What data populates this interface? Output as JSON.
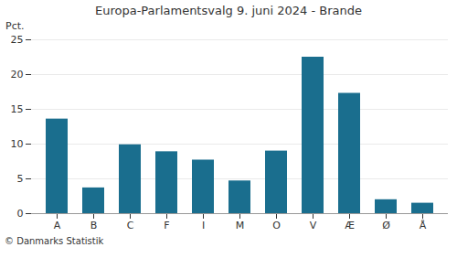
{
  "chart_data": {
    "type": "bar",
    "title": "Europa-Parlamentsvalg 9. juni 2024 - Brande",
    "ylabel": "Pct.",
    "caption": "© Danmarks Statistik",
    "categories": [
      "A",
      "B",
      "C",
      "F",
      "I",
      "M",
      "O",
      "V",
      "Æ",
      "Ø",
      "Å"
    ],
    "values": [
      13.6,
      3.7,
      9.9,
      8.9,
      7.7,
      4.7,
      9.0,
      22.5,
      17.3,
      2.0,
      1.5
    ],
    "color": "#1a6e8e",
    "ylim": [
      0,
      25
    ],
    "yticks": [
      0,
      5,
      10,
      15,
      20,
      25
    ],
    "grid": true
  }
}
